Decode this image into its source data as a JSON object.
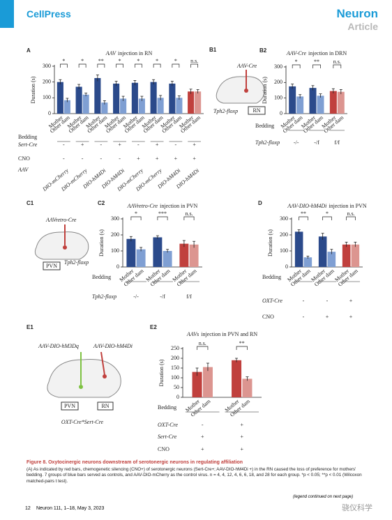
{
  "header": {
    "publisher": "CellPress",
    "journal": "Neuron",
    "section": "Article"
  },
  "diagrams": [
    {
      "panel": "B1",
      "virus": "AAV-Cre",
      "mouse": "Tph2-floxp",
      "region": "RN"
    },
    {
      "panel": "C1",
      "virus": "AAVretro-Cre",
      "mouse": "Tph2-floxp",
      "region": "PVN"
    },
    {
      "panel": "E1",
      "virus_1": "AAV-DIO-hM3Dq",
      "virus_2": "AAV-DIO-hM4Di",
      "region_1": "PVN",
      "region_2": "RN",
      "mouse": "OXT-Cre*Sert-Cre"
    }
  ],
  "chart_data": [
    {
      "type": "bar",
      "panel": "A",
      "title_em": "AAV",
      "title": "injection in RN",
      "ylabel": "Duration (s)",
      "ylim": [
        0,
        300
      ],
      "yticks": [
        0,
        100,
        200,
        300
      ],
      "categories": [
        "Mother",
        "Other dam",
        "Mother",
        "Other dam",
        "Mother",
        "Other dam",
        "Mother",
        "Other dam",
        "Mother",
        "Other dam",
        "Mother",
        "Other dam",
        "Mother",
        "Other dam",
        "Mother",
        "Other dam"
      ],
      "values": [
        200,
        85,
        170,
        120,
        225,
        70,
        190,
        95,
        195,
        95,
        200,
        100,
        190,
        100,
        140,
        140
      ],
      "errors": [
        15,
        12,
        15,
        10,
        20,
        12,
        15,
        15,
        15,
        15,
        15,
        15,
        15,
        12,
        15,
        12
      ],
      "colors": [
        "#2b4a8b",
        "#7f9fd3",
        "#2b4a8b",
        "#7f9fd3",
        "#2b4a8b",
        "#7f9fd3",
        "#2b4a8b",
        "#7f9fd3",
        "#2b4a8b",
        "#7f9fd3",
        "#2b4a8b",
        "#7f9fd3",
        "#2b4a8b",
        "#7f9fd3",
        "#c0403d",
        "#dc9590"
      ],
      "significance": [
        "*",
        "*",
        "**",
        "*",
        "*",
        "*",
        "*",
        "n.s."
      ],
      "bedding": "Bedding",
      "conditions": [
        {
          "label": "Sert-Cre",
          "values": [
            "-",
            "+",
            "-",
            "+",
            "-",
            "+",
            "-",
            "+"
          ]
        },
        {
          "label": "CNO",
          "values": [
            "-",
            "-",
            "-",
            "-",
            "+",
            "+",
            "+",
            "+"
          ]
        },
        {
          "label": "AAV",
          "values": [
            "DIO-mCherry",
            "DIO-mCherry",
            "DIO-hM4Di",
            "DIO-hM4Di",
            "DIO-mCherry",
            "DIO-mCherry",
            "DIO-hM4Di",
            "DIO-hM4Di"
          ]
        }
      ]
    },
    {
      "type": "bar",
      "panel": "B2",
      "title_em": "AAV-Cre",
      "title": "injection in DRN",
      "ylabel": "Duration (s)",
      "ylim": [
        0,
        300
      ],
      "yticks": [
        0,
        100,
        200,
        300
      ],
      "categories": [
        "Mother",
        "Other dam",
        "Mother",
        "Other dam",
        "Mother",
        "Other dam"
      ],
      "values": [
        175,
        110,
        165,
        115,
        145,
        140
      ],
      "errors": [
        15,
        12,
        15,
        12,
        15,
        15
      ],
      "colors": [
        "#2b4a8b",
        "#7f9fd3",
        "#2b4a8b",
        "#7f9fd3",
        "#c0403d",
        "#dc9590"
      ],
      "significance": [
        "*",
        "**",
        "n.s."
      ],
      "bedding": "Bedding",
      "conditions": [
        {
          "label": "Tph2-floxp",
          "values": [
            "-/-",
            "-/f",
            "f/f"
          ]
        }
      ]
    },
    {
      "type": "bar",
      "panel": "C2",
      "title_em": "AAVretro-Cre",
      "title": "injection in PVN",
      "ylabel": "Duration (s)",
      "ylim": [
        0,
        300
      ],
      "yticks": [
        0,
        100,
        200,
        300
      ],
      "categories": [
        "Mother",
        "Other dam",
        "Mother",
        "Other dam",
        "Mother",
        "Other dam"
      ],
      "values": [
        175,
        110,
        185,
        100,
        145,
        140
      ],
      "errors": [
        15,
        12,
        10,
        10,
        20,
        20
      ],
      "colors": [
        "#2b4a8b",
        "#7f9fd3",
        "#2b4a8b",
        "#7f9fd3",
        "#c0403d",
        "#dc9590"
      ],
      "significance": [
        "*",
        "***",
        "n.s."
      ],
      "bedding": "Bedding",
      "conditions": [
        {
          "label": "Tph2-floxp",
          "values": [
            "-/-",
            "-/f",
            "f/f"
          ]
        }
      ]
    },
    {
      "type": "bar",
      "panel": "D",
      "title_em": "AAV-DIO-hM4Di",
      "title": "injection in PVN",
      "ylabel": "Duration (s)",
      "ylim": [
        0,
        300
      ],
      "yticks": [
        0,
        100,
        200,
        300
      ],
      "categories": [
        "Mother",
        "Other dam",
        "Mother",
        "Other dam",
        "Mother",
        "Other dam"
      ],
      "values": [
        220,
        60,
        190,
        95,
        140,
        140
      ],
      "errors": [
        12,
        8,
        20,
        15,
        15,
        15
      ],
      "colors": [
        "#2b4a8b",
        "#7f9fd3",
        "#2b4a8b",
        "#7f9fd3",
        "#c0403d",
        "#dc9590"
      ],
      "significance": [
        "**",
        "*",
        "n.s."
      ],
      "bedding": "Bedding",
      "conditions": [
        {
          "label": "OXT-Cre",
          "values": [
            "-",
            "-",
            "+"
          ]
        },
        {
          "label": "CNO",
          "values": [
            "-",
            "+",
            "+"
          ]
        }
      ]
    },
    {
      "type": "bar",
      "panel": "E2",
      "title_em": "AAVs",
      "title": "injection in PVN and RN",
      "ylabel": "Duration (s)",
      "ylim": [
        0,
        250
      ],
      "yticks": [
        0,
        50,
        100,
        150,
        200,
        250
      ],
      "categories": [
        "Mother",
        "Other dam",
        "Mother",
        "Other dam"
      ],
      "values": [
        130,
        155,
        190,
        95
      ],
      "errors": [
        20,
        20,
        10,
        10
      ],
      "colors": [
        "#c0403d",
        "#dc9590",
        "#c0403d",
        "#dc9590"
      ],
      "significance": [
        "n.s.",
        "**"
      ],
      "bedding": "Bedding",
      "conditions": [
        {
          "label": "OXT-Cre",
          "values": [
            "-",
            "+"
          ]
        },
        {
          "label": "Sert-Cre",
          "values": [
            "+",
            "+"
          ]
        },
        {
          "label": "CNO",
          "values": [
            "+",
            "+"
          ]
        }
      ]
    }
  ],
  "caption": {
    "title": "Figure 8. Oxytocinergic neurons downstream of serotonergic neurons in regulating affiliation",
    "text": "(A) As indicated by red bars, chemogenetic silencing (CNO+) of serotonergic neurons (Sert-Cre+; AAV-DIO-hM4Di +) in the RN caused the loss of preference for mothers' bedding. 7 groups of blue bars served as controls, and AAV-DIO-mCherry as the control virus. n = 4, 4, 12, 4, 6, 6, 18, and 28 for each group. *p < 0.05; **p < 0.01 (Wilcoxon matched-pairs t test)."
  },
  "footer": {
    "page": "12",
    "citation": "Neuron 111, 1–18, May 3, 2023",
    "continued": "(legend continued on next page)",
    "watermark": "骁仪科学"
  }
}
